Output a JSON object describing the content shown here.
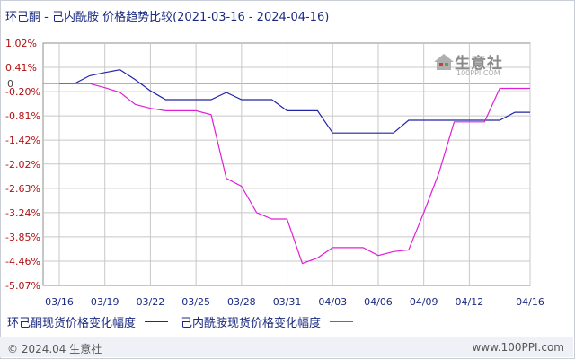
{
  "page": {
    "title": "环己酮 - 己内酰胺 价格趋势比较",
    "date_range": "(2021-03-16 - 2024-04-16)",
    "copyright": "© 2024.04 生意社",
    "footer_url": "www.100PPI.com",
    "logo_text": "生意社",
    "logo_url": "100PPI.COM"
  },
  "colors": {
    "series_a": "#2323a8",
    "series_b": "#e020d8",
    "grid": "#c8c8c8",
    "zero_line": "#9a9a9a",
    "ytick": "#b01010",
    "xtick": "#1a2a80"
  },
  "chart_data": {
    "type": "line",
    "title": "",
    "xlabel": "",
    "ylabel": "",
    "ylim": [
      -5.07,
      1.02
    ],
    "yticks": [
      "1.02%",
      "0.41%",
      "-0.20%",
      "-0.81%",
      "-1.42%",
      "-2.02%",
      "-2.63%",
      "-3.24%",
      "-3.85%",
      "-4.46%",
      "-5.07%"
    ],
    "ytick_values": [
      1.02,
      0.41,
      -0.2,
      -0.81,
      -1.42,
      -2.02,
      -2.63,
      -3.24,
      -3.85,
      -4.46,
      -5.07
    ],
    "zero_label": "0",
    "xticks": [
      "03/16",
      "03/19",
      "03/22",
      "03/25",
      "03/28",
      "03/31",
      "04/03",
      "04/06",
      "04/09",
      "04/12",
      "04/16"
    ],
    "x": [
      "03/16",
      "03/17",
      "03/18",
      "03/19",
      "03/20",
      "03/21",
      "03/22",
      "03/23",
      "03/24",
      "03/25",
      "03/26",
      "03/27",
      "03/28",
      "03/29",
      "03/30",
      "03/31",
      "04/01",
      "04/02",
      "04/03",
      "04/04",
      "04/05",
      "04/06",
      "04/07",
      "04/08",
      "04/09",
      "04/10",
      "04/11",
      "04/12",
      "04/13",
      "04/14",
      "04/15",
      "04/16"
    ],
    "series": [
      {
        "name": "环己酮现货价格变化幅度",
        "values": [
          0.0,
          0.0,
          0.2,
          0.28,
          0.35,
          0.1,
          -0.18,
          -0.4,
          -0.4,
          -0.4,
          -0.4,
          -0.22,
          -0.4,
          -0.4,
          -0.4,
          -0.68,
          -0.68,
          -0.68,
          -1.24,
          -1.24,
          -1.24,
          -1.24,
          -1.24,
          -0.92,
          -0.92,
          -0.92,
          -0.92,
          -0.92,
          -0.92,
          -0.92,
          -0.72,
          -0.72
        ]
      },
      {
        "name": "己内酰胺现货价格变化幅度",
        "values": [
          0.0,
          0.0,
          0.0,
          -0.1,
          -0.22,
          -0.52,
          -0.62,
          -0.68,
          -0.68,
          -0.68,
          -0.78,
          -2.38,
          -2.58,
          -3.24,
          -3.4,
          -3.4,
          -4.52,
          -4.38,
          -4.12,
          -4.12,
          -4.12,
          -4.32,
          -4.22,
          -4.18,
          -3.24,
          -2.24,
          -0.96,
          -0.96,
          -0.96,
          -0.12,
          -0.12,
          -0.12
        ]
      }
    ],
    "grid": true
  },
  "legend": [
    {
      "label": "环己酮现货价格变化幅度",
      "color": "#2323a8"
    },
    {
      "label": "己内酰胺现货价格变化幅度",
      "color": "#e020d8"
    }
  ]
}
